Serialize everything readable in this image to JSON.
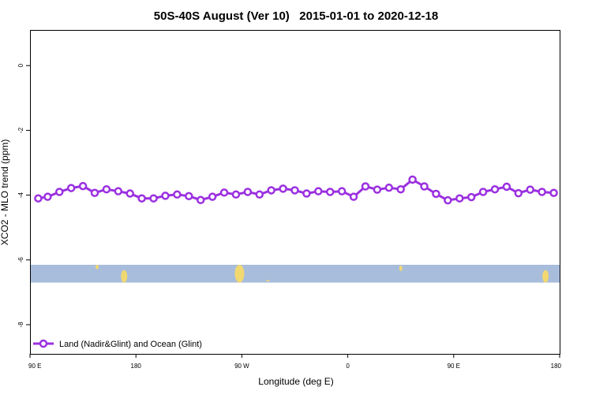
{
  "chart_data": {
    "type": "line",
    "title": "50S-40S August (Ver 10)   2015-01-01 to 2020-12-18",
    "xlabel": "Longitude (deg E)",
    "ylabel": "XCO2 - MLO trend (ppm)",
    "x_ticks": [
      {
        "value": 90,
        "label": "90 E"
      },
      {
        "value": 180,
        "label": "180"
      },
      {
        "value": 270,
        "label": "90 W"
      },
      {
        "value": 360,
        "label": "0"
      },
      {
        "value": 450,
        "label": "90 E"
      },
      {
        "value": 540,
        "label": "180"
      }
    ],
    "xlim": [
      90,
      540
    ],
    "y_ticks": [
      0,
      -2,
      -4,
      -6,
      -8
    ],
    "ylim": [
      -8.9,
      1.1
    ],
    "grid": false,
    "legend_position": "bottom-left",
    "series": [
      {
        "name": "Land (Nadir&Glint) and Ocean (Glint)",
        "color": "#9b30e0",
        "x": [
          97,
          105,
          115,
          125,
          135,
          145,
          155,
          165,
          175,
          185,
          195,
          205,
          215,
          225,
          235,
          245,
          255,
          265,
          275,
          285,
          295,
          305,
          315,
          325,
          335,
          345,
          355,
          365,
          375,
          385,
          395,
          405,
          415,
          425,
          435,
          445,
          455,
          465,
          475,
          485,
          495,
          505,
          515,
          525,
          535
        ],
        "y": [
          -4.1,
          -4.05,
          -3.9,
          -3.78,
          -3.72,
          -3.93,
          -3.82,
          -3.88,
          -3.95,
          -4.1,
          -4.1,
          -4.02,
          -3.98,
          -4.03,
          -4.15,
          -4.05,
          -3.92,
          -3.98,
          -3.9,
          -3.98,
          -3.85,
          -3.8,
          -3.85,
          -3.95,
          -3.88,
          -3.9,
          -3.88,
          -4.05,
          -3.73,
          -3.83,
          -3.77,
          -3.82,
          -3.52,
          -3.73,
          -3.96,
          -4.16,
          -4.1,
          -4.06,
          -3.9,
          -3.82,
          -3.74,
          -3.94,
          -3.83,
          -3.9,
          -3.93
        ]
      }
    ],
    "land_mask": {
      "y_range": [
        -6.15,
        -6.7
      ],
      "ocean_color": "#a8bcdc",
      "land_color": "#f2d870"
    }
  }
}
